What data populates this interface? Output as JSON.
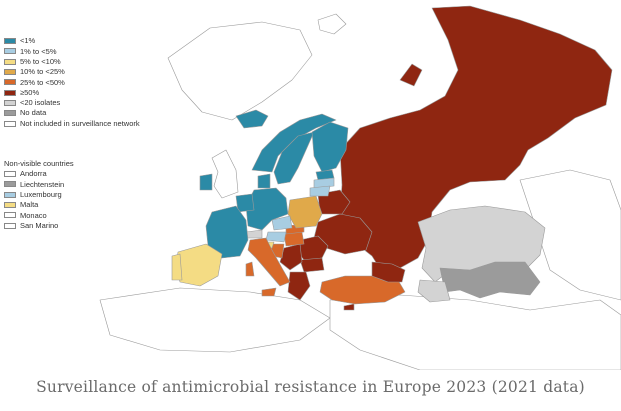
{
  "caption": "Surveillance of antimicrobial resistance in Europe 2023 (2021 data)",
  "colors": {
    "lt1": "#2b8aa6",
    "1to5": "#a8cde2",
    "5to10": "#f4dc84",
    "10to25": "#e0a94a",
    "25to50": "#d8692a",
    "ge50": "#8f2611",
    "lt20": "#d3d3d3",
    "nodata": "#9b9b9b",
    "notincluded": "#ffffff",
    "border": "#9a9a9a"
  },
  "legend": {
    "items": [
      {
        "label": "<1%",
        "color": "#2b8aa6"
      },
      {
        "label": "1% to <5%",
        "color": "#a8cde2"
      },
      {
        "label": "5% to <10%",
        "color": "#f4dc84"
      },
      {
        "label": "10% to <25%",
        "color": "#e0a94a"
      },
      {
        "label": "25% to <50%",
        "color": "#d8692a"
      },
      {
        "label": "≥50%",
        "color": "#8f2611"
      },
      {
        "label": "<20 isolates",
        "color": "#d3d3d3"
      },
      {
        "label": "No data",
        "color": "#9b9b9b"
      },
      {
        "label": "Not included in surveillance network",
        "color": "#ffffff"
      }
    ],
    "non_visible_title": "Non-visible countries",
    "non_visible": [
      {
        "label": "Andorra",
        "color": "#ffffff"
      },
      {
        "label": "Liechtenstein",
        "color": "#9b9b9b"
      },
      {
        "label": "Luxembourg",
        "color": "#a8cde2"
      },
      {
        "label": "Malta",
        "color": "#f4dc84"
      },
      {
        "label": "Monaco",
        "color": "#ffffff"
      },
      {
        "label": "San Marino",
        "color": "#ffffff"
      }
    ]
  }
}
